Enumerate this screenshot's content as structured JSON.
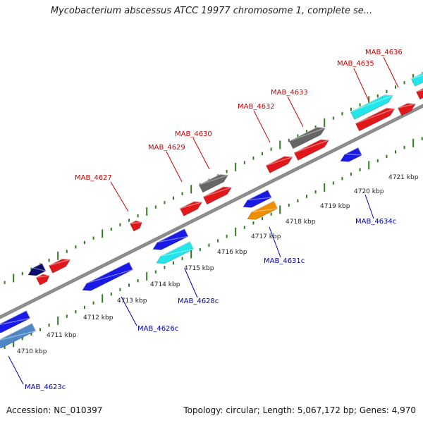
{
  "title": "Mycobacterium abscessus ATCC 19977 chromosome 1, complete se...",
  "footer": {
    "accession": "Accession: NC_010397",
    "topology": "Topology: circular; Length: 5,067,172 bp; Genes: 4,970"
  },
  "colors": {
    "backbone": "#8c8c8c",
    "tick": "#2e7d1e",
    "forward_label": "#cc0000",
    "reverse_label": "#0000aa",
    "red": "#e0181b",
    "blue": "#1a1ae6",
    "cyan": "#22e6ea",
    "gray": "#666666",
    "navy": "#0b0b6e",
    "orange": "#f08c00",
    "steel": "#4f86c6"
  },
  "kbp_labels": [
    "4710 kbp",
    "4711 kbp",
    "4712 kbp",
    "4713 kbp",
    "4714 kbp",
    "4715 kbp",
    "4716 kbp",
    "4717 kbp",
    "4718 kbp",
    "4719 kbp",
    "4720 kbp",
    "4721 kbp"
  ],
  "forward_gene_labels": [
    "MAB_4627",
    "MAB_4629",
    "MAB_4630",
    "MAB_4632",
    "MAB_4633",
    "MAB_4635",
    "MAB_4636"
  ],
  "reverse_gene_labels": [
    "MAB_4623c",
    "MAB_4626c",
    "MAB_4628c",
    "MAB_4631c",
    "MAB_4634c"
  ]
}
